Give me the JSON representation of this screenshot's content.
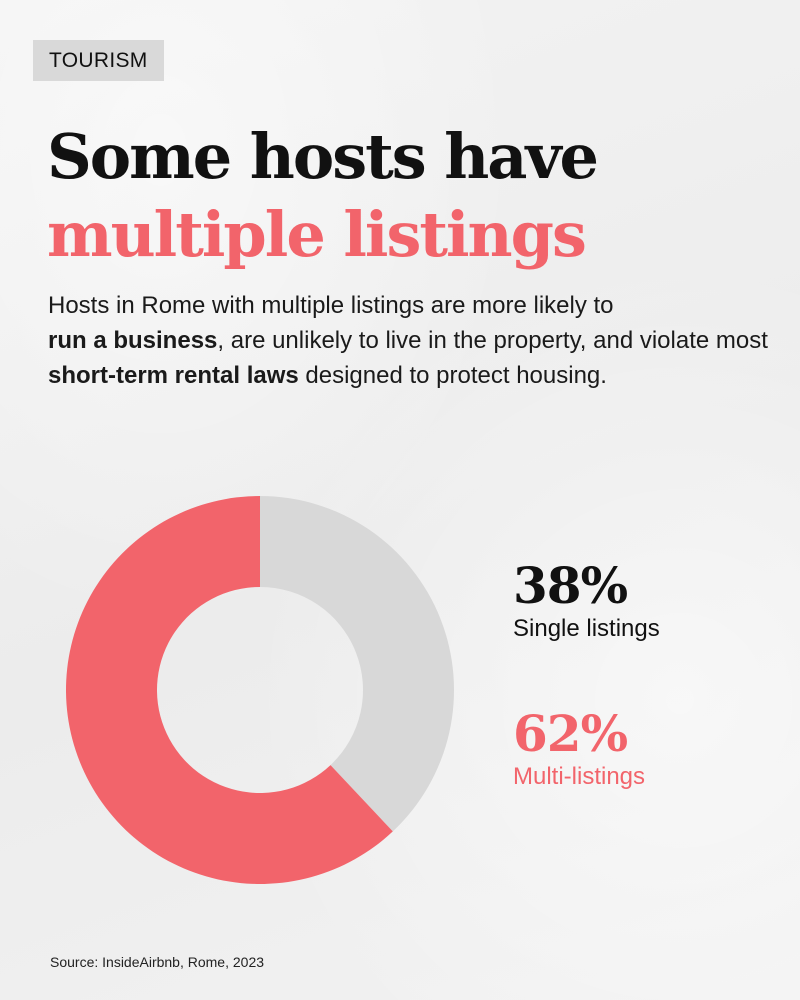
{
  "tag": "TOURISM",
  "title": {
    "line1": "Some hosts have",
    "line2": "multiple listings"
  },
  "description": {
    "line1": "Hosts in Rome with multiple listings are more likely to",
    "bold1": "run a business",
    "mid": ", are unlikely to live in the property, and violate most ",
    "bold2": "short-term rental laws",
    "end": " designed to protect housing."
  },
  "stats": {
    "single": {
      "pct": "38%",
      "label": "Single listings"
    },
    "multi": {
      "pct": "62%",
      "label": "Multi-listings"
    }
  },
  "source": "Source:  InsideAirbnb, Rome, 2023",
  "colors": {
    "multi": "#f2646b",
    "single": "#d8d8d8",
    "text": "#111111",
    "background": "#efefef"
  },
  "chart_data": {
    "type": "pie",
    "categories": [
      "Single listings",
      "Multi-listings"
    ],
    "values": [
      38,
      62
    ],
    "title": "",
    "unit": "%"
  }
}
